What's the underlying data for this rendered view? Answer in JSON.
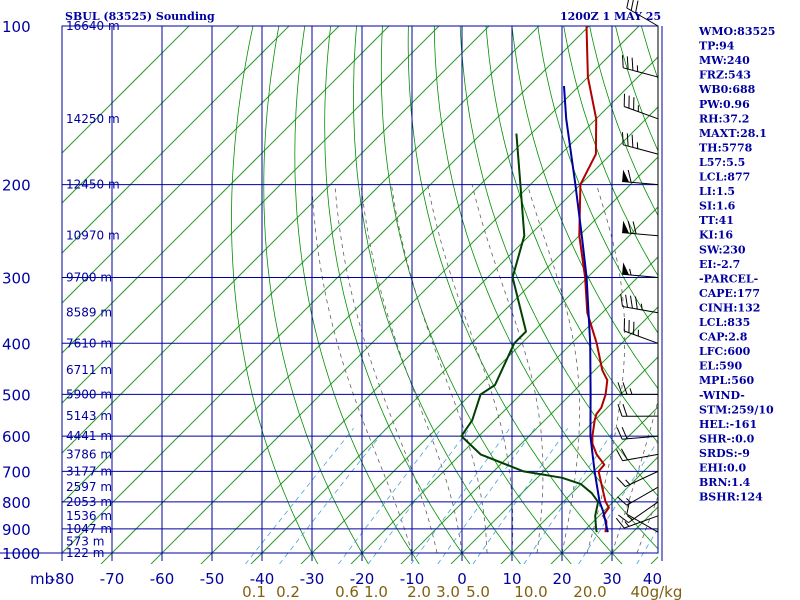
{
  "chart_data": {
    "type": "line",
    "title": "SBUL (83525) Sounding",
    "valid_time": "1200Z  1 MAY 25",
    "y_axis": {
      "scale": "log",
      "unit": "mb",
      "range": [
        1000,
        100
      ],
      "pressure_ticks": [
        100,
        200,
        300,
        400,
        500,
        600,
        700,
        800,
        900,
        1000
      ],
      "height_labels": [
        {
          "p": 100,
          "label": "16640 m"
        },
        {
          "p": 150,
          "label": "14250 m"
        },
        {
          "p": 200,
          "label": "12450 m"
        },
        {
          "p": 250,
          "label": "10970 m"
        },
        {
          "p": 300,
          "label": "9700 m"
        },
        {
          "p": 350,
          "label": "8589 m"
        },
        {
          "p": 400,
          "label": "7610 m"
        },
        {
          "p": 450,
          "label": "6711 m"
        },
        {
          "p": 500,
          "label": "5900 m"
        },
        {
          "p": 550,
          "label": "5143 m"
        },
        {
          "p": 600,
          "label": "4441 m"
        },
        {
          "p": 650,
          "label": "3786 m"
        },
        {
          "p": 700,
          "label": "3177 m"
        },
        {
          "p": 750,
          "label": "2597 m"
        },
        {
          "p": 800,
          "label": "2053 m"
        },
        {
          "p": 850,
          "label": "1536 m"
        },
        {
          "p": 900,
          "label": "1047 m"
        },
        {
          "p": 950,
          "label": "573 m"
        },
        {
          "p": 1000,
          "label": "122 m"
        }
      ]
    },
    "x_axis": {
      "unit_label": "mb",
      "temp_ticks": [
        -80,
        -70,
        -60,
        -50,
        -40,
        -30,
        -20,
        -10,
        0,
        10,
        20,
        30,
        40
      ],
      "temp_range": [
        -80,
        40
      ]
    },
    "mixing_ratio_labels": [
      "0.1",
      "0.2",
      "0.6",
      "1.0",
      "2.0",
      "3.0",
      "5.0",
      "10.0",
      "20.0",
      "40",
      "g/kg"
    ],
    "mixing_ratio_values": [
      0.1,
      0.2,
      0.6,
      1.0,
      2.0,
      3.0,
      5.0,
      10.0,
      20.0,
      40
    ],
    "series": [
      {
        "kind": "temperature",
        "color": "#b00000",
        "points": [
          [
            913,
            24.5
          ],
          [
            900,
            24.0
          ],
          [
            870,
            22.5
          ],
          [
            850,
            20.8
          ],
          [
            820,
            20.3
          ],
          [
            800,
            18.5
          ],
          [
            760,
            15.6
          ],
          [
            700,
            11.0
          ],
          [
            680,
            10.8
          ],
          [
            650,
            7.2
          ],
          [
            620,
            4.2
          ],
          [
            600,
            2.7
          ],
          [
            560,
            0.0
          ],
          [
            545,
            -0.9
          ],
          [
            530,
            -1.2
          ],
          [
            500,
            -3.0
          ],
          [
            470,
            -5.5
          ],
          [
            450,
            -8.5
          ],
          [
            400,
            -15.0
          ],
          [
            350,
            -23.0
          ],
          [
            300,
            -30.5
          ],
          [
            250,
            -40.0
          ],
          [
            200,
            -50.0
          ],
          [
            175,
            -53.0
          ],
          [
            150,
            -60.0
          ],
          [
            125,
            -70.0
          ],
          [
            100,
            -80.5
          ]
        ]
      },
      {
        "kind": "dewpoint",
        "color": "#004000",
        "points": [
          [
            913,
            22.8
          ],
          [
            900,
            22.0
          ],
          [
            850,
            19.2
          ],
          [
            800,
            17.0
          ],
          [
            770,
            14.0
          ],
          [
            740,
            10.0
          ],
          [
            720,
            5.0
          ],
          [
            700,
            -4.0
          ],
          [
            650,
            -16.0
          ],
          [
            600,
            -23.5
          ],
          [
            560,
            -24.5
          ],
          [
            500,
            -28.0
          ],
          [
            480,
            -27.0
          ],
          [
            400,
            -31.5
          ],
          [
            380,
            -31.5
          ],
          [
            300,
            -45.0
          ],
          [
            250,
            -51.0
          ],
          [
            200,
            -62.0
          ],
          [
            160,
            -73.0
          ]
        ]
      },
      {
        "kind": "parcel",
        "color": "#0000a0",
        "points": [
          [
            913,
            25.0
          ],
          [
            835,
            20.0
          ],
          [
            800,
            17.3
          ],
          [
            700,
            10.2
          ],
          [
            600,
            2.3
          ],
          [
            500,
            -6.0
          ],
          [
            400,
            -16.3
          ],
          [
            300,
            -30.2
          ],
          [
            250,
            -39.5
          ],
          [
            200,
            -51.0
          ],
          [
            150,
            -66.0
          ],
          [
            130,
            -73.0
          ]
        ]
      }
    ],
    "winds": [
      {
        "p": 913,
        "dir": 300,
        "speed": 10
      },
      {
        "p": 850,
        "dir": 250,
        "speed": 15
      },
      {
        "p": 800,
        "dir": 235,
        "speed": 15
      },
      {
        "p": 750,
        "dir": 240,
        "speed": 15
      },
      {
        "p": 700,
        "dir": 245,
        "speed": 15
      },
      {
        "p": 650,
        "dir": 260,
        "speed": 20
      },
      {
        "p": 600,
        "dir": 265,
        "speed": 20
      },
      {
        "p": 550,
        "dir": 270,
        "speed": 20
      },
      {
        "p": 500,
        "dir": 270,
        "speed": 25
      },
      {
        "p": 400,
        "dir": 290,
        "speed": 35
      },
      {
        "p": 350,
        "dir": 280,
        "speed": 45
      },
      {
        "p": 300,
        "dir": 275,
        "speed": 55
      },
      {
        "p": 250,
        "dir": 275,
        "speed": 70
      },
      {
        "p": 200,
        "dir": 275,
        "speed": 60
      },
      {
        "p": 175,
        "dir": 285,
        "speed": 35
      },
      {
        "p": 150,
        "dir": 290,
        "speed": 35
      },
      {
        "p": 125,
        "dir": 285,
        "speed": 35
      },
      {
        "p": 100,
        "dir": 300,
        "speed": 30
      }
    ],
    "grid": true,
    "colors": {
      "axis": "#0000a0",
      "isotherm": "#2a9a2a",
      "dry_adiabat": "#009000",
      "moist_adiabat": "#606060",
      "mixing_ratio": "#4aa3d8",
      "wind_barb": "#000000",
      "mixing_ratio_label": "#806010"
    }
  },
  "indices": [
    "WMO:83525",
    "TP:94",
    "MW:240",
    "FRZ:543",
    "WB0:688",
    "PW:0.96",
    "RH:37.2",
    "MAXT:28.1",
    "TH:5778",
    "L57:5.5",
    "LCL:877",
    "LI:1.5",
    "SI:1.6",
    "TT:41",
    "KI:16",
    "SW:230",
    "EI:-2.7",
    "-PARCEL-",
    "CAPE:177",
    "CINH:132",
    "LCL:835",
    "CAP:2.8",
    "LFC:600",
    "EL:590",
    "MPL:560",
    "-WIND-",
    "STM:259/10",
    "HEL:-161",
    "SHR-:0.0",
    "SRDS:-9",
    "EHI:0.0",
    "BRN:1.4",
    "BSHR:124"
  ]
}
